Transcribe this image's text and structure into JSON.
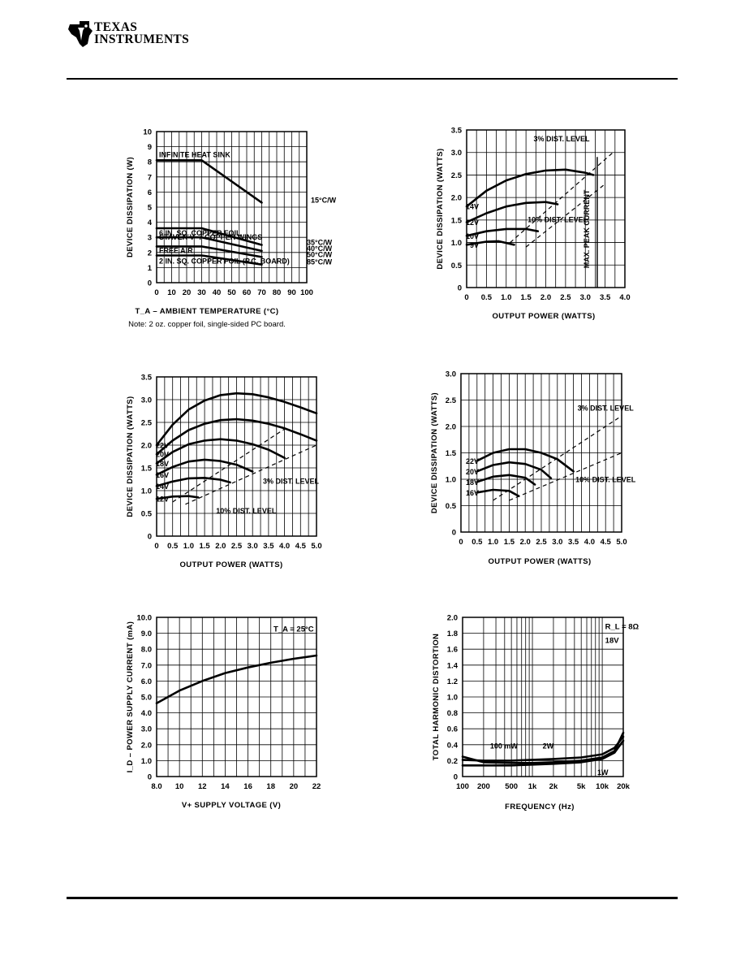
{
  "header": {
    "logo_line1": "TEXAS",
    "logo_line2": "INSTRUMENTS"
  },
  "chart_data": [
    {
      "type": "line",
      "xlabel": "T_A – AMBIENT TEMPERATURE (°C)",
      "ylabel": "DEVICE DISSIPATION (W)",
      "note": "Note: 2 oz. copper foil, single-sided PC board.",
      "xlim": [
        0,
        100
      ],
      "ylim": [
        0,
        10
      ],
      "xticks": [
        "0",
        "10",
        "20",
        "30",
        "40",
        "50",
        "60",
        "70",
        "80",
        "90",
        "100"
      ],
      "yticks": [
        "0",
        "1",
        "2",
        "3",
        "4",
        "5",
        "6",
        "7",
        "8",
        "9",
        "10"
      ],
      "grid": true,
      "series": [
        {
          "name": "INFINITE HEAT SINK",
          "x": [
            0,
            30,
            70
          ],
          "y": [
            8.1,
            8.1,
            5.3
          ]
        },
        {
          "name": "STAVER V–7 COPPER WINGS",
          "x": [
            0,
            30,
            70
          ],
          "y": [
            3.6,
            3.6,
            2.5
          ]
        },
        {
          "name": "6 IN. SQ. COPPER FOIL",
          "x": [
            0,
            30,
            70
          ],
          "y": [
            3.0,
            3.0,
            2.1
          ]
        },
        {
          "name": "FREE AIR",
          "x": [
            0,
            30,
            70
          ],
          "y": [
            2.4,
            2.4,
            1.7
          ]
        },
        {
          "name": "2 IN. SQ. COPPER FOIL (P.C. BOARD)",
          "x": [
            0,
            30,
            70
          ],
          "y": [
            1.8,
            1.8,
            1.2
          ]
        }
      ],
      "annotations": [
        "15°C/W",
        "35°C/W",
        "40°C/W",
        "50°C/W",
        "85°C/W"
      ]
    },
    {
      "type": "line",
      "xlabel": "OUTPUT POWER (WATTS)",
      "ylabel": "DEVICE DISSIPATION (WATTS)",
      "xlim": [
        0,
        4.0
      ],
      "ylim": [
        0,
        3.5
      ],
      "xticks": [
        "0",
        "0.5",
        "1.0",
        "1.5",
        "2.0",
        "2.5",
        "3.0",
        "3.5",
        "4.0"
      ],
      "yticks": [
        "0",
        "0.5",
        "1.0",
        "1.5",
        "2.0",
        "2.5",
        "3.0",
        "3.5"
      ],
      "grid": true,
      "series": [
        {
          "name": "14V",
          "x": [
            0,
            0.5,
            1.0,
            1.5,
            2.0,
            2.5,
            3.0,
            3.2
          ],
          "y": [
            1.8,
            2.15,
            2.38,
            2.52,
            2.6,
            2.62,
            2.55,
            2.5
          ]
        },
        {
          "name": "12V",
          "x": [
            0,
            0.5,
            1.0,
            1.5,
            2.0,
            2.3
          ],
          "y": [
            1.45,
            1.65,
            1.8,
            1.88,
            1.9,
            1.85
          ]
        },
        {
          "name": "10V",
          "x": [
            0,
            0.5,
            1.0,
            1.5,
            1.8
          ],
          "y": [
            1.15,
            1.25,
            1.3,
            1.3,
            1.25
          ]
        },
        {
          "name": "9V",
          "x": [
            0,
            0.5,
            0.8,
            1.2
          ],
          "y": [
            0.95,
            1.02,
            1.03,
            0.95
          ]
        }
      ],
      "annotations": [
        "3% DIST. LEVEL",
        "10% DIST. LEVEL",
        "MAX. PEAK CURRENT"
      ]
    },
    {
      "type": "line",
      "xlabel": "OUTPUT POWER (WATTS)",
      "ylabel": "DEVICE DISSIPATION (WATTS)",
      "xlim": [
        0,
        5.0
      ],
      "ylim": [
        0,
        3.5
      ],
      "xticks": [
        "0",
        "0.5",
        "1.0",
        "1.5",
        "2.0",
        "2.5",
        "3.0",
        "3.5",
        "4.0",
        "4.5",
        "5.0"
      ],
      "yticks": [
        "0",
        "0.5",
        "1.0",
        "1.5",
        "2.0",
        "2.5",
        "3.0",
        "3.5"
      ],
      "grid": true,
      "series": [
        {
          "name": "22V",
          "x": [
            0,
            0.5,
            1.0,
            1.5,
            2.0,
            2.5,
            3.0,
            3.5,
            4.0,
            4.5,
            5.0
          ],
          "y": [
            2.0,
            2.45,
            2.78,
            2.98,
            3.1,
            3.14,
            3.12,
            3.05,
            2.95,
            2.83,
            2.7
          ]
        },
        {
          "name": "20V",
          "x": [
            0,
            0.5,
            1.0,
            1.5,
            2.0,
            2.5,
            3.0,
            3.5,
            4.0,
            4.5,
            5.0
          ],
          "y": [
            1.8,
            2.1,
            2.33,
            2.47,
            2.55,
            2.57,
            2.54,
            2.47,
            2.37,
            2.24,
            2.1
          ]
        },
        {
          "name": "18V",
          "x": [
            0,
            0.5,
            1.0,
            1.5,
            2.0,
            2.5,
            3.0,
            3.5,
            4.0
          ],
          "y": [
            1.6,
            1.85,
            2.02,
            2.1,
            2.13,
            2.1,
            2.02,
            1.9,
            1.72
          ]
        },
        {
          "name": "16V",
          "x": [
            0,
            0.5,
            1.0,
            1.5,
            2.0,
            2.5,
            3.0
          ],
          "y": [
            1.35,
            1.52,
            1.64,
            1.68,
            1.65,
            1.57,
            1.42
          ]
        },
        {
          "name": "14V",
          "x": [
            0,
            0.5,
            1.0,
            1.5,
            2.0,
            2.3
          ],
          "y": [
            1.1,
            1.2,
            1.27,
            1.28,
            1.24,
            1.18
          ]
        },
        {
          "name": "12V",
          "x": [
            0,
            0.5,
            1.0,
            1.3
          ],
          "y": [
            0.82,
            0.87,
            0.88,
            0.85
          ]
        }
      ],
      "annotations": [
        "3% DIST. LEVEL",
        "10% DIST. LEVEL"
      ]
    },
    {
      "type": "line",
      "xlabel": "OUTPUT POWER (WATTS)",
      "ylabel": "DEVICE DISSIPATION (WATTS)",
      "xlim": [
        0,
        5.0
      ],
      "ylim": [
        0,
        3.0
      ],
      "xticks": [
        "0",
        "0.5",
        "1.0",
        "1.5",
        "2.0",
        "2.5",
        "3.0",
        "3.5",
        "4.0",
        "4.5",
        "5.0"
      ],
      "yticks": [
        "0",
        "0.5",
        "1.0",
        "1.5",
        "2.0",
        "2.5",
        "3.0"
      ],
      "grid": true,
      "series": [
        {
          "name": "22V",
          "x": [
            0.5,
            1.0,
            1.5,
            2.0,
            2.5,
            3.0,
            3.5
          ],
          "y": [
            1.35,
            1.5,
            1.57,
            1.57,
            1.5,
            1.38,
            1.15
          ]
        },
        {
          "name": "20V",
          "x": [
            0.5,
            1.0,
            1.5,
            2.0,
            2.5,
            2.8
          ],
          "y": [
            1.15,
            1.27,
            1.32,
            1.29,
            1.18,
            1.02
          ]
        },
        {
          "name": "18V",
          "x": [
            0.5,
            1.0,
            1.5,
            2.0,
            2.3
          ],
          "y": [
            0.95,
            1.05,
            1.08,
            1.03,
            0.9
          ]
        },
        {
          "name": "16V",
          "x": [
            0.5,
            1.0,
            1.5,
            1.8
          ],
          "y": [
            0.75,
            0.8,
            0.78,
            0.68
          ]
        }
      ],
      "annotations": [
        "3% DIST. LEVEL",
        "10% DIST. LEVEL"
      ]
    },
    {
      "type": "line",
      "xlabel": "V+ SUPPLY VOLTAGE (V)",
      "ylabel": "I_D – POWER SUPPLY CURRENT (mA)",
      "xlim": [
        8.0,
        22
      ],
      "ylim": [
        0,
        10.0
      ],
      "xticks": [
        "8.0",
        "10",
        "12",
        "14",
        "16",
        "18",
        "20",
        "22"
      ],
      "yticks": [
        "0",
        "1.0",
        "2.0",
        "3.0",
        "4.0",
        "5.0",
        "6.0",
        "7.0",
        "8.0",
        "9.0",
        "10.0"
      ],
      "grid": true,
      "series": [
        {
          "name": "",
          "x": [
            8,
            10,
            12,
            14,
            16,
            18,
            20,
            22
          ],
          "y": [
            4.6,
            5.4,
            6.0,
            6.5,
            6.85,
            7.15,
            7.4,
            7.6
          ]
        }
      ],
      "annotations": [
        "T_A = 25°C"
      ]
    },
    {
      "type": "line",
      "xlabel": "FREQUENCY (Hz)",
      "ylabel": "TOTAL HARMONIC DISTORTION",
      "xscale": "log",
      "xlim": [
        100,
        20000
      ],
      "ylim": [
        0,
        2.0
      ],
      "xticks": [
        "100",
        "200",
        "500",
        "1k",
        "2k",
        "5k",
        "10k",
        "20k"
      ],
      "yticks": [
        "0",
        "0.2",
        "0.4",
        "0.6",
        "0.8",
        "1.0",
        "1.2",
        "1.4",
        "1.6",
        "1.8",
        "2.0"
      ],
      "grid": true,
      "series": [
        {
          "name": "100 mW",
          "x": [
            100,
            200,
            500,
            1000,
            2000,
            5000,
            10000,
            15000,
            20000
          ],
          "y": [
            0.25,
            0.18,
            0.17,
            0.17,
            0.18,
            0.2,
            0.24,
            0.32,
            0.55
          ]
        },
        {
          "name": "2W",
          "x": [
            100,
            200,
            500,
            1000,
            2000,
            5000,
            10000,
            15000,
            20000
          ],
          "y": [
            0.21,
            0.2,
            0.2,
            0.21,
            0.22,
            0.24,
            0.28,
            0.36,
            0.5
          ]
        },
        {
          "name": "1W",
          "x": [
            100,
            200,
            500,
            1000,
            2000,
            5000,
            10000,
            15000,
            20000
          ],
          "y": [
            0.14,
            0.14,
            0.14,
            0.15,
            0.16,
            0.18,
            0.22,
            0.3,
            0.45
          ]
        }
      ],
      "annotations": [
        "R_L = 8Ω",
        "18V"
      ]
    }
  ]
}
